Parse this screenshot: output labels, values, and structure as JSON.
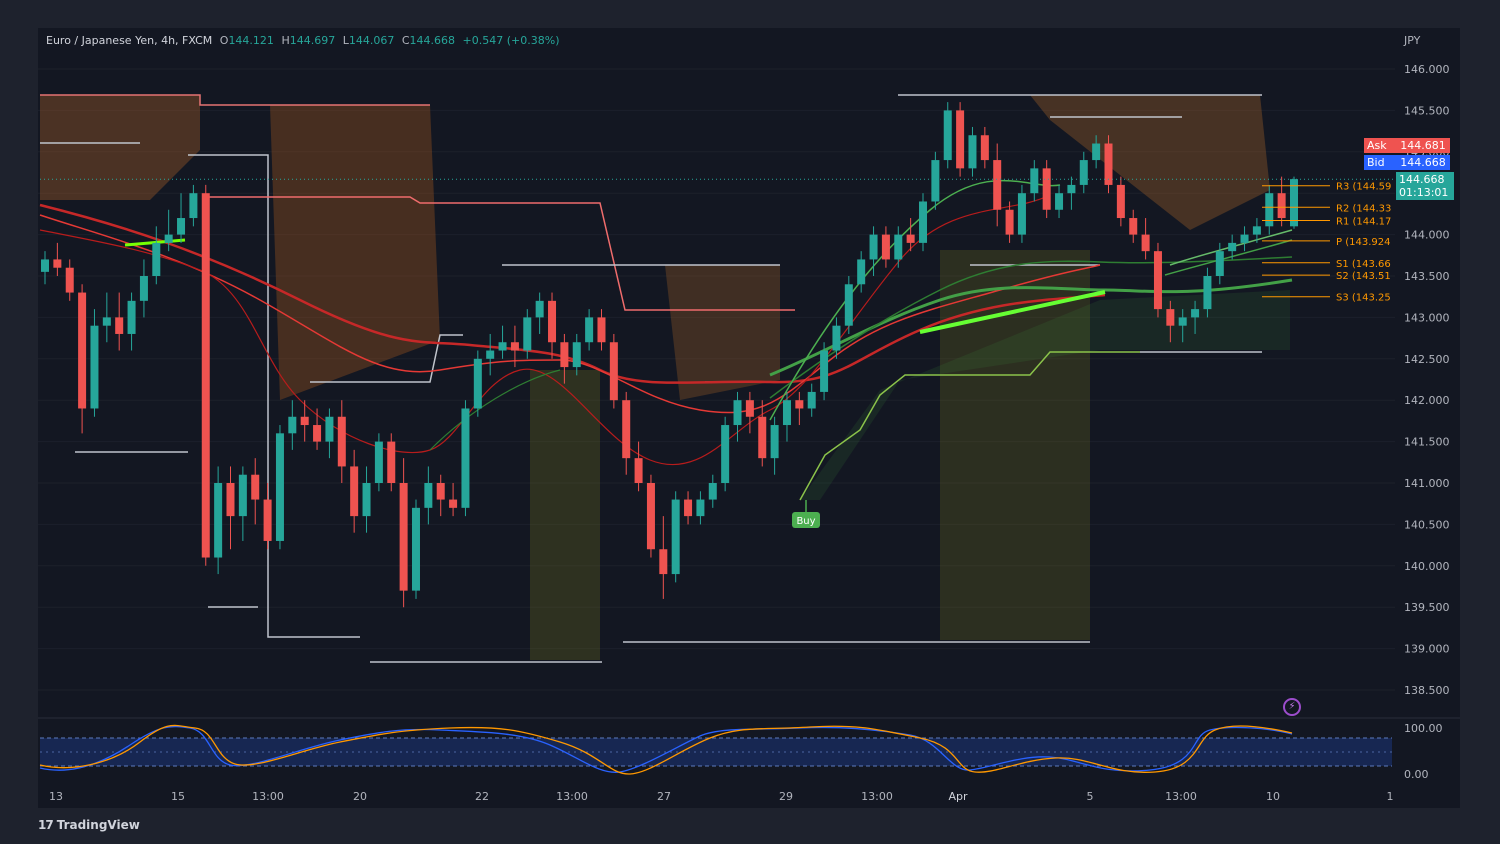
{
  "legend": {
    "symbol": "Euro / Japanese Yen, 4h, FXCM",
    "o_label": "O",
    "o_value": "144.121",
    "h_label": "H",
    "h_value": "144.697",
    "l_label": "L",
    "l_value": "144.067",
    "c_label": "C",
    "c_value": "144.668",
    "change": "+0.547 (+0.38%)"
  },
  "currency": "JPY",
  "quote": {
    "ask_label": "Ask",
    "ask_value": "144.681",
    "bid_label": "Bid",
    "bid_value": "144.668",
    "last_value": "144.668",
    "countdown": "01:13:01"
  },
  "pivots": [
    {
      "label": "R3 (144.59",
      "value": 144.59
    },
    {
      "label": "R2 (144.33",
      "value": 144.33
    },
    {
      "label": "R1 (144.17",
      "value": 144.17
    },
    {
      "label": "P (143.924",
      "value": 143.924
    },
    {
      "label": "S1 (143.66",
      "value": 143.66
    },
    {
      "label": "S2 (143.51",
      "value": 143.51
    },
    {
      "label": "S3 (143.25",
      "value": 143.25
    }
  ],
  "signal_label": "Buy",
  "footer": {
    "logo_mark": "17",
    "logo_text": "TradingView"
  },
  "colors": {
    "up": "#26a69a",
    "down": "#ef5350",
    "ask": "#ef5350",
    "bid": "#2962ff",
    "last": "#26a69a",
    "ema_bull": "#4caf50",
    "ema_bear": "#e53935"
  },
  "chart_data": {
    "type": "candlestick",
    "symbol": "EUR/JPY",
    "interval": "4h",
    "y_ticks": [
      "146.000",
      "145.500",
      "145.000",
      "144.500",
      "144.000",
      "143.500",
      "143.000",
      "142.500",
      "142.000",
      "141.500",
      "141.000",
      "140.500",
      "140.000",
      "139.500",
      "139.000",
      "138.500"
    ],
    "ylim": [
      138.0,
      146.3
    ],
    "x_ticks": [
      "13",
      "15",
      "13:00",
      "20",
      "22",
      "13:00",
      "27",
      "29",
      "13:00",
      "Apr",
      "5",
      "13:00",
      "10",
      "1"
    ],
    "oscillator": {
      "y_ticks": [
        "100.00",
        "0.00"
      ],
      "range": [
        0,
        100
      ]
    },
    "candles": [
      [
        143.55,
        143.8,
        143.4,
        143.7
      ],
      [
        143.7,
        143.9,
        143.5,
        143.6
      ],
      [
        143.6,
        143.7,
        143.2,
        143.3
      ],
      [
        143.3,
        143.4,
        141.6,
        141.9
      ],
      [
        141.9,
        143.1,
        141.8,
        142.9
      ],
      [
        142.9,
        143.3,
        142.7,
        143.0
      ],
      [
        143.0,
        143.3,
        142.6,
        142.8
      ],
      [
        142.8,
        143.3,
        142.6,
        143.2
      ],
      [
        143.2,
        143.7,
        143.0,
        143.5
      ],
      [
        143.5,
        144.1,
        143.4,
        143.9
      ],
      [
        143.9,
        144.3,
        143.8,
        144.0
      ],
      [
        144.0,
        144.5,
        143.9,
        144.2
      ],
      [
        144.2,
        144.6,
        144.1,
        144.5
      ],
      [
        144.5,
        144.6,
        140.0,
        140.1
      ],
      [
        140.1,
        141.2,
        139.9,
        141.0
      ],
      [
        141.0,
        141.2,
        140.2,
        140.6
      ],
      [
        140.6,
        141.2,
        140.3,
        141.1
      ],
      [
        141.1,
        141.3,
        140.5,
        140.8
      ],
      [
        140.8,
        141.0,
        140.2,
        140.3
      ],
      [
        140.3,
        141.7,
        140.2,
        141.6
      ],
      [
        141.6,
        142.0,
        141.4,
        141.8
      ],
      [
        141.8,
        142.0,
        141.5,
        141.7
      ],
      [
        141.7,
        141.9,
        141.4,
        141.5
      ],
      [
        141.5,
        141.9,
        141.3,
        141.8
      ],
      [
        141.8,
        142.0,
        141.0,
        141.2
      ],
      [
        141.2,
        141.4,
        140.4,
        140.6
      ],
      [
        140.6,
        141.2,
        140.4,
        141.0
      ],
      [
        141.0,
        141.6,
        140.9,
        141.5
      ],
      [
        141.5,
        141.6,
        140.9,
        141.0
      ],
      [
        141.0,
        141.3,
        139.5,
        139.7
      ],
      [
        139.7,
        140.8,
        139.6,
        140.7
      ],
      [
        140.7,
        141.2,
        140.5,
        141.0
      ],
      [
        141.0,
        141.1,
        140.6,
        140.8
      ],
      [
        140.8,
        141.0,
        140.6,
        140.7
      ],
      [
        140.7,
        142.0,
        140.6,
        141.9
      ],
      [
        141.9,
        142.6,
        141.8,
        142.5
      ],
      [
        142.5,
        142.8,
        142.3,
        142.6
      ],
      [
        142.6,
        142.9,
        142.5,
        142.7
      ],
      [
        142.7,
        142.9,
        142.4,
        142.6
      ],
      [
        142.6,
        143.1,
        142.5,
        143.0
      ],
      [
        143.0,
        143.3,
        142.8,
        143.2
      ],
      [
        143.2,
        143.3,
        142.5,
        142.7
      ],
      [
        142.7,
        142.8,
        142.2,
        142.4
      ],
      [
        142.4,
        142.8,
        142.3,
        142.7
      ],
      [
        142.7,
        143.1,
        142.6,
        143.0
      ],
      [
        143.0,
        143.1,
        142.6,
        142.7
      ],
      [
        142.7,
        142.8,
        141.9,
        142.0
      ],
      [
        142.0,
        142.1,
        141.1,
        141.3
      ],
      [
        141.3,
        141.5,
        140.9,
        141.0
      ],
      [
        141.0,
        141.1,
        140.1,
        140.2
      ],
      [
        140.2,
        140.6,
        139.6,
        139.9
      ],
      [
        139.9,
        140.9,
        139.8,
        140.8
      ],
      [
        140.8,
        140.9,
        140.5,
        140.6
      ],
      [
        140.6,
        140.9,
        140.5,
        140.8
      ],
      [
        140.8,
        141.1,
        140.7,
        141.0
      ],
      [
        141.0,
        141.8,
        140.9,
        141.7
      ],
      [
        141.7,
        142.1,
        141.5,
        142.0
      ],
      [
        142.0,
        142.1,
        141.6,
        141.8
      ],
      [
        141.8,
        142.0,
        141.2,
        141.3
      ],
      [
        141.3,
        141.8,
        141.1,
        141.7
      ],
      [
        141.7,
        142.1,
        141.5,
        142.0
      ],
      [
        142.0,
        142.1,
        141.7,
        141.9
      ],
      [
        141.9,
        142.2,
        141.8,
        142.1
      ],
      [
        142.1,
        142.7,
        142.0,
        142.6
      ],
      [
        142.6,
        143.0,
        142.5,
        142.9
      ],
      [
        142.9,
        143.5,
        142.8,
        143.4
      ],
      [
        143.4,
        143.8,
        143.3,
        143.7
      ],
      [
        143.7,
        144.1,
        143.5,
        144.0
      ],
      [
        144.0,
        144.1,
        143.6,
        143.7
      ],
      [
        143.7,
        144.1,
        143.6,
        144.0
      ],
      [
        144.0,
        144.2,
        143.8,
        143.9
      ],
      [
        143.9,
        144.5,
        143.8,
        144.4
      ],
      [
        144.4,
        145.0,
        144.3,
        144.9
      ],
      [
        144.9,
        145.6,
        144.8,
        145.5
      ],
      [
        145.5,
        145.6,
        144.7,
        144.8
      ],
      [
        144.8,
        145.3,
        144.7,
        145.2
      ],
      [
        145.2,
        145.3,
        144.8,
        144.9
      ],
      [
        144.9,
        145.1,
        144.1,
        144.3
      ],
      [
        144.3,
        144.4,
        143.9,
        144.0
      ],
      [
        144.0,
        144.6,
        143.9,
        144.5
      ],
      [
        144.5,
        144.9,
        144.4,
        144.8
      ],
      [
        144.8,
        144.9,
        144.2,
        144.3
      ],
      [
        144.3,
        144.6,
        144.2,
        144.5
      ],
      [
        144.5,
        144.7,
        144.3,
        144.6
      ],
      [
        144.6,
        145.0,
        144.5,
        144.9
      ],
      [
        144.9,
        145.2,
        144.8,
        145.1
      ],
      [
        145.1,
        145.2,
        144.5,
        144.6
      ],
      [
        144.6,
        144.7,
        144.1,
        144.2
      ],
      [
        144.2,
        144.3,
        143.9,
        144.0
      ],
      [
        144.0,
        144.2,
        143.7,
        143.8
      ],
      [
        143.8,
        143.9,
        143.0,
        143.1
      ],
      [
        143.1,
        143.2,
        142.7,
        142.9
      ],
      [
        142.9,
        143.1,
        142.7,
        143.0
      ],
      [
        143.0,
        143.2,
        142.8,
        143.1
      ],
      [
        143.1,
        143.6,
        143.0,
        143.5
      ],
      [
        143.5,
        143.9,
        143.4,
        143.8
      ],
      [
        143.8,
        144.0,
        143.7,
        143.9
      ],
      [
        143.9,
        144.1,
        143.8,
        144.0
      ],
      [
        144.0,
        144.2,
        143.9,
        144.1
      ],
      [
        144.1,
        144.6,
        144.0,
        144.5
      ],
      [
        144.5,
        144.7,
        144.1,
        144.2
      ],
      [
        144.1,
        144.7,
        144.07,
        144.67
      ]
    ]
  }
}
